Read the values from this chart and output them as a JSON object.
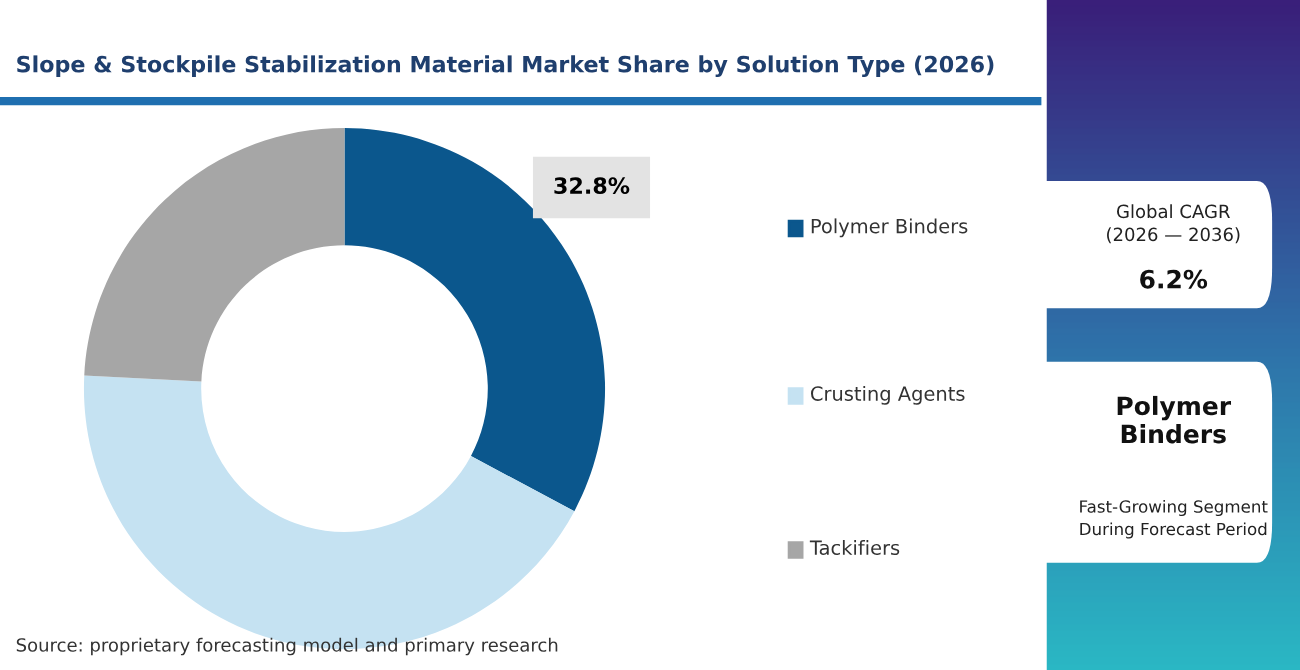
{
  "chart_data": {
    "type": "donut",
    "title": "Slope & Stockpile Stabilization Material Market Share by Solution Type (2026)",
    "categories": [
      "Polymer Binders",
      "Crusting Agents",
      "Tackifiers"
    ],
    "values": [
      32.8,
      43.0,
      24.2
    ],
    "colors": [
      "#0b578d",
      "#c5e2f2",
      "#a6a6a6"
    ],
    "value_labels": [
      "32.8%",
      null,
      null
    ],
    "legend": "right",
    "annotations": [
      "Source: proprietary forecasting model and primary research",
      "Global CAGR\n(2026 — 2036)",
      "6.2%",
      "Polymer\nBinders",
      "Fast-Growing Segment\nDuring Forecast Period"
    ]
  }
}
